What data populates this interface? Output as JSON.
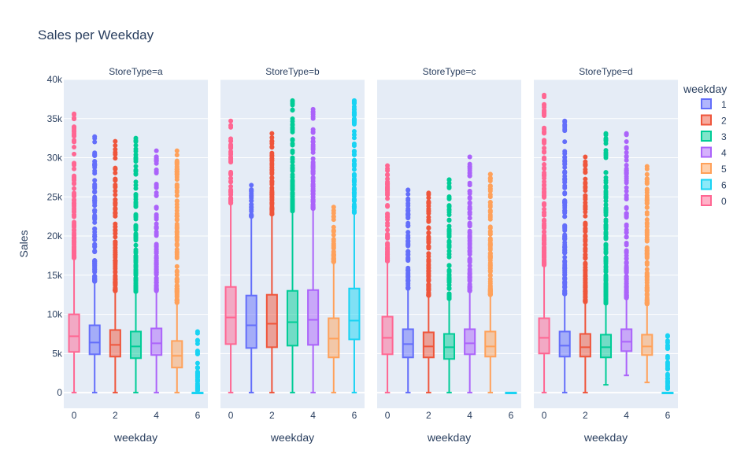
{
  "chart_data": {
    "type": "box",
    "title": "Sales per Weekday",
    "ylabel": "Sales",
    "xlabel": "weekday",
    "ylim": [
      -2000,
      40000
    ],
    "xlim": [
      -0.5,
      6.5
    ],
    "y_ticks": [
      0,
      5000,
      10000,
      15000,
      20000,
      25000,
      30000,
      35000,
      40000
    ],
    "y_tick_labels": [
      "0",
      "5k",
      "10k",
      "15k",
      "20k",
      "25k",
      "30k",
      "35k",
      "40k"
    ],
    "x_ticks": [
      0,
      2,
      4,
      6
    ],
    "x_tick_labels": [
      "0",
      "2",
      "4",
      "6"
    ],
    "grid": true,
    "legend": {
      "title": "weekday",
      "position": "right",
      "entries": [
        {
          "name": "1",
          "color": "#636efa"
        },
        {
          "name": "2",
          "color": "#ef553b"
        },
        {
          "name": "3",
          "color": "#00cc96"
        },
        {
          "name": "4",
          "color": "#ab63fa"
        },
        {
          "name": "5",
          "color": "#ffa15a"
        },
        {
          "name": "6",
          "color": "#19d3f3"
        },
        {
          "name": "0",
          "color": "#ff6692"
        }
      ]
    },
    "facets": [
      {
        "title": "StoreType=a",
        "boxes": [
          {
            "weekday": 0,
            "color": "#ff6692",
            "min": 0,
            "q1": 5200,
            "median": 7200,
            "q3": 10000,
            "whisker_high": 17200,
            "outliers_range": [
              17200,
              35600
            ]
          },
          {
            "weekday": 1,
            "color": "#636efa",
            "min": 0,
            "q1": 4900,
            "median": 6400,
            "q3": 8600,
            "whisker_high": 14200,
            "outliers_range": [
              14200,
              32700
            ]
          },
          {
            "weekday": 2,
            "color": "#ef553b",
            "min": 0,
            "q1": 4600,
            "median": 6100,
            "q3": 8000,
            "whisker_high": 13000,
            "outliers_range": [
              13000,
              32100
            ]
          },
          {
            "weekday": 3,
            "color": "#00cc96",
            "min": 0,
            "q1": 4400,
            "median": 5900,
            "q3": 7800,
            "whisker_high": 12900,
            "outliers_range": [
              12900,
              32500
            ]
          },
          {
            "weekday": 4,
            "color": "#ab63fa",
            "min": 0,
            "q1": 4800,
            "median": 6300,
            "q3": 8200,
            "whisker_high": 13000,
            "outliers_range": [
              13000,
              30900
            ]
          },
          {
            "weekday": 5,
            "color": "#ffa15a",
            "min": 0,
            "q1": 3200,
            "median": 4700,
            "q3": 6600,
            "whisker_high": 11500,
            "outliers_range": [
              11500,
              30900
            ]
          },
          {
            "weekday": 6,
            "color": "#19d3f3",
            "min": 0,
            "q1": 0,
            "median": 0,
            "q3": 0,
            "whisker_high": 0,
            "outliers_range": [
              300,
              7800
            ]
          }
        ]
      },
      {
        "title": "StoreType=b",
        "boxes": [
          {
            "weekday": 0,
            "color": "#ff6692",
            "min": 0,
            "q1": 6200,
            "median": 9600,
            "q3": 13500,
            "whisker_high": 24200,
            "outliers_range": [
              24200,
              34700
            ]
          },
          {
            "weekday": 1,
            "color": "#636efa",
            "min": 0,
            "q1": 5700,
            "median": 8600,
            "q3": 12400,
            "whisker_high": 22500,
            "outliers_range": [
              22500,
              26500
            ]
          },
          {
            "weekday": 2,
            "color": "#ef553b",
            "min": 0,
            "q1": 5800,
            "median": 8800,
            "q3": 12500,
            "whisker_high": 22800,
            "outliers_range": [
              22800,
              33100
            ]
          },
          {
            "weekday": 3,
            "color": "#00cc96",
            "min": 0,
            "q1": 6000,
            "median": 9000,
            "q3": 13000,
            "whisker_high": 23200,
            "outliers_range": [
              23200,
              37300
            ]
          },
          {
            "weekday": 4,
            "color": "#ab63fa",
            "min": 0,
            "q1": 6100,
            "median": 9300,
            "q3": 13100,
            "whisker_high": 23500,
            "outliers_range": [
              23500,
              36200
            ]
          },
          {
            "weekday": 5,
            "color": "#ffa15a",
            "min": 0,
            "q1": 4500,
            "median": 6900,
            "q3": 9500,
            "whisker_high": 16700,
            "outliers_range": [
              16700,
              23700
            ]
          },
          {
            "weekday": 6,
            "color": "#19d3f3",
            "min": 0,
            "q1": 6800,
            "median": 9200,
            "q3": 13300,
            "whisker_high": 23000,
            "outliers_range": [
              23000,
              37300
            ]
          }
        ]
      },
      {
        "title": "StoreType=c",
        "boxes": [
          {
            "weekday": 0,
            "color": "#ff6692",
            "min": 0,
            "q1": 4900,
            "median": 7000,
            "q3": 9700,
            "whisker_high": 16800,
            "outliers_range": [
              16800,
              29000
            ]
          },
          {
            "weekday": 1,
            "color": "#636efa",
            "min": 0,
            "q1": 4500,
            "median": 6200,
            "q3": 8100,
            "whisker_high": 13300,
            "outliers_range": [
              13300,
              25900
            ]
          },
          {
            "weekday": 2,
            "color": "#ef553b",
            "min": 0,
            "q1": 4500,
            "median": 5900,
            "q3": 7700,
            "whisker_high": 12400,
            "outliers_range": [
              12400,
              25500
            ]
          },
          {
            "weekday": 3,
            "color": "#00cc96",
            "min": 0,
            "q1": 4300,
            "median": 5800,
            "q3": 7500,
            "whisker_high": 12000,
            "outliers_range": [
              12000,
              27200
            ]
          },
          {
            "weekday": 4,
            "color": "#ab63fa",
            "min": 0,
            "q1": 4900,
            "median": 6300,
            "q3": 8100,
            "whisker_high": 13000,
            "outliers_range": [
              13000,
              30100
            ]
          },
          {
            "weekday": 5,
            "color": "#ffa15a",
            "min": 0,
            "q1": 4600,
            "median": 5900,
            "q3": 7800,
            "whisker_high": 12500,
            "outliers_range": [
              12500,
              27900
            ]
          },
          {
            "weekday": 6,
            "color": "#19d3f3",
            "min": 0,
            "q1": 0,
            "median": 0,
            "q3": 0,
            "whisker_high": 0,
            "outliers_range": [
              0,
              0
            ]
          }
        ]
      },
      {
        "title": "StoreType=d",
        "boxes": [
          {
            "weekday": 0,
            "color": "#ff6692",
            "min": 0,
            "q1": 5000,
            "median": 7000,
            "q3": 9500,
            "whisker_high": 16300,
            "outliers_range": [
              16300,
              38000
            ]
          },
          {
            "weekday": 1,
            "color": "#636efa",
            "min": 0,
            "q1": 4600,
            "median": 6000,
            "q3": 7800,
            "whisker_high": 12600,
            "outliers_range": [
              12600,
              34700
            ]
          },
          {
            "weekday": 2,
            "color": "#ef553b",
            "min": 0,
            "q1": 4600,
            "median": 5800,
            "q3": 7500,
            "whisker_high": 11600,
            "outliers_range": [
              11600,
              30100
            ]
          },
          {
            "weekday": 3,
            "color": "#00cc96",
            "min": 1000,
            "q1": 4500,
            "median": 5800,
            "q3": 7400,
            "whisker_high": 11400,
            "outliers_range": [
              11400,
              33100
            ]
          },
          {
            "weekday": 4,
            "color": "#ab63fa",
            "min": 2200,
            "q1": 5300,
            "median": 6500,
            "q3": 8100,
            "whisker_high": 12100,
            "outliers_range": [
              12100,
              33100
            ]
          },
          {
            "weekday": 5,
            "color": "#ffa15a",
            "min": 1300,
            "q1": 4800,
            "median": 5900,
            "q3": 7400,
            "whisker_high": 11300,
            "outliers_range": [
              11300,
              28900
            ]
          },
          {
            "weekday": 6,
            "color": "#19d3f3",
            "min": 0,
            "q1": 0,
            "median": 0,
            "q3": 0,
            "whisker_high": 0,
            "outliers_range": [
              500,
              7300
            ]
          }
        ]
      }
    ]
  }
}
